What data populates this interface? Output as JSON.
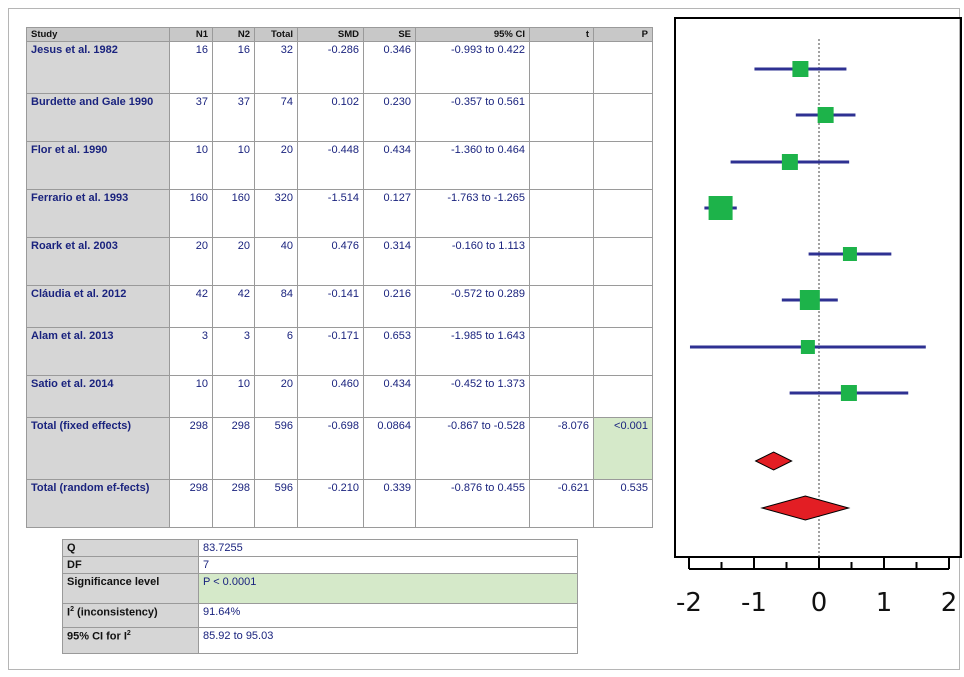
{
  "table": {
    "headers": [
      "Study",
      "N1",
      "N2",
      "Total",
      "SMD",
      "SE",
      "95% CI",
      "t",
      "P"
    ],
    "rows": [
      {
        "study": "Jesus et al. 1982",
        "n1": "16",
        "n2": "16",
        "total": "32",
        "smd": "-0.286",
        "se": "0.346",
        "ci": "-0.993 to 0.422",
        "t": "",
        "p": ""
      },
      {
        "study": "Burdette and Gale 1990",
        "n1": "37",
        "n2": "37",
        "total": "74",
        "smd": "0.102",
        "se": "0.230",
        "ci": "-0.357 to 0.561",
        "t": "",
        "p": ""
      },
      {
        "study": "Flor et al. 1990",
        "n1": "10",
        "n2": "10",
        "total": "20",
        "smd": "-0.448",
        "se": "0.434",
        "ci": "-1.360 to 0.464",
        "t": "",
        "p": ""
      },
      {
        "study": "Ferrario et al. 1993",
        "n1": "160",
        "n2": "160",
        "total": "320",
        "smd": "-1.514",
        "se": "0.127",
        "ci": "-1.763 to -1.265",
        "t": "",
        "p": ""
      },
      {
        "study": "Roark et al. 2003",
        "n1": "20",
        "n2": "20",
        "total": "40",
        "smd": "0.476",
        "se": "0.314",
        "ci": "-0.160 to 1.113",
        "t": "",
        "p": ""
      },
      {
        "study": "Cláudia et al. 2012",
        "n1": "42",
        "n2": "42",
        "total": "84",
        "smd": "-0.141",
        "se": "0.216",
        "ci": "-0.572 to 0.289",
        "t": "",
        "p": ""
      },
      {
        "study": "Alam et al. 2013",
        "n1": "3",
        "n2": "3",
        "total": "6",
        "smd": "-0.171",
        "se": "0.653",
        "ci": "-1.985 to 1.643",
        "t": "",
        "p": ""
      },
      {
        "study": "Satio et al. 2014",
        "n1": "10",
        "n2": "10",
        "total": "20",
        "smd": "0.460",
        "se": "0.434",
        "ci": "-0.452 to 1.373",
        "t": "",
        "p": ""
      },
      {
        "study": "Total (fixed effects)",
        "n1": "298",
        "n2": "298",
        "total": "596",
        "smd": "-0.698",
        "se": "0.0864",
        "ci": "-0.867 to -0.528",
        "t": "-8.076",
        "p": "<0.001"
      },
      {
        "study": "Total (random ef-fects)",
        "n1": "298",
        "n2": "298",
        "total": "596",
        "smd": "-0.210",
        "se": "0.339",
        "ci": "-0.876 to 0.455",
        "t": "-0.621",
        "p": "0.535"
      }
    ]
  },
  "stats": [
    {
      "label": "Q",
      "value": "83.7255"
    },
    {
      "label": "DF",
      "value": "7"
    },
    {
      "label": "Significance level",
      "value": "P < 0.0001"
    },
    {
      "label_main": "I",
      "label_sup": "2",
      "label_rest": " (inconsistency)",
      "value": "91.64%"
    },
    {
      "label_main": "95% CI for I",
      "label_sup": "2",
      "label_rest": "",
      "value": "85.92 to 95.03"
    }
  ],
  "colors": {
    "ci_line": "#2e3192",
    "square": "#1db34a",
    "diamond": "#e31e24",
    "header_bg": "#c8c8c8",
    "study_bg": "#d6d6d6",
    "highlight": "#d5e9c9"
  },
  "chart_data": {
    "type": "forest",
    "x_ticks": [
      "-2",
      "-1",
      "0",
      "1",
      "2"
    ],
    "xlim": [
      -2,
      2
    ],
    "reference_line": 0,
    "studies": [
      {
        "smd": -0.286,
        "ci": [
          -0.993,
          0.422
        ]
      },
      {
        "smd": 0.102,
        "ci": [
          -0.357,
          0.561
        ]
      },
      {
        "smd": -0.448,
        "ci": [
          -1.36,
          0.464
        ]
      },
      {
        "smd": -1.514,
        "ci": [
          -1.763,
          -1.265
        ]
      },
      {
        "smd": 0.476,
        "ci": [
          -0.16,
          1.113
        ]
      },
      {
        "smd": -0.141,
        "ci": [
          -0.572,
          0.289
        ]
      },
      {
        "smd": -0.171,
        "ci": [
          -1.985,
          1.643
        ]
      },
      {
        "smd": 0.46,
        "ci": [
          -0.452,
          1.373
        ]
      }
    ],
    "pooled": [
      {
        "name": "Total (fixed effects)",
        "smd": -0.698,
        "ci": [
          -0.867,
          -0.528
        ]
      },
      {
        "name": "Total (random effects)",
        "smd": -0.21,
        "ci": [
          -0.876,
          0.455
        ]
      }
    ]
  }
}
